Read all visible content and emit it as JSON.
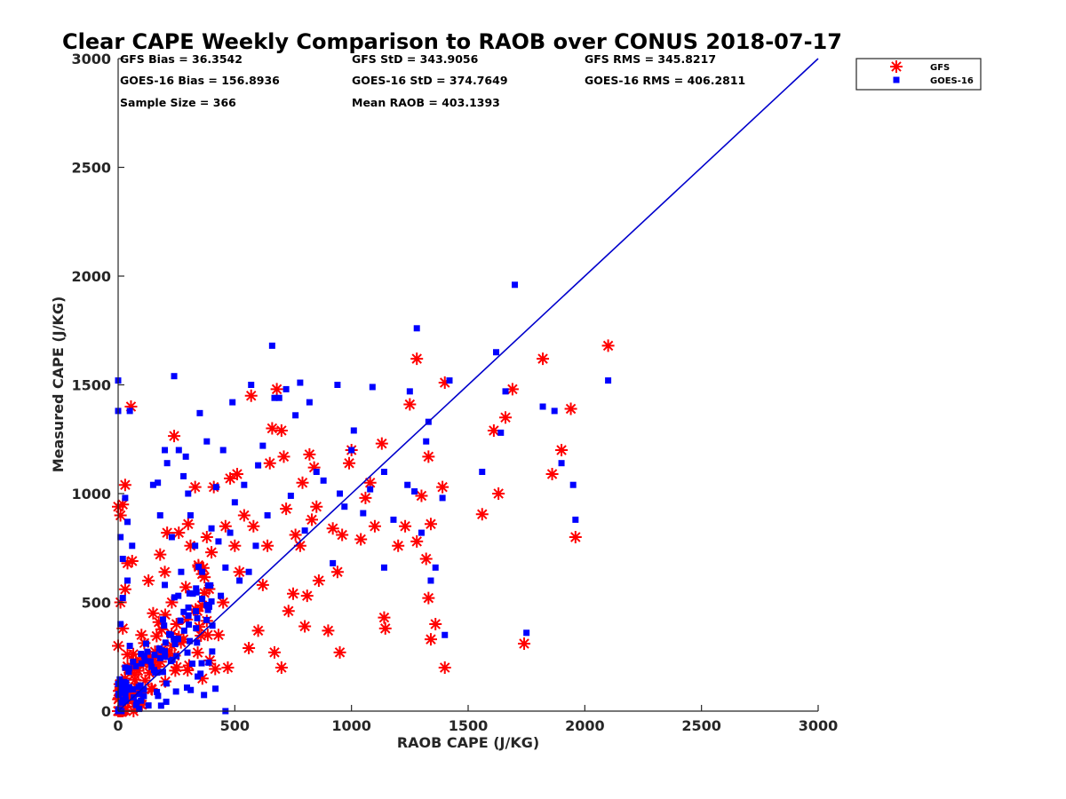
{
  "chart_data": {
    "type": "scatter",
    "title": "Clear CAPE Weekly Comparison to RAOB over CONUS 2018-07-17",
    "xlabel": "RAOB CAPE (J/KG)",
    "ylabel": "Measured CAPE (J/KG)",
    "xlim": [
      0,
      3000
    ],
    "ylim": [
      0,
      3000
    ],
    "xticks": [
      "0",
      "500",
      "1000",
      "1500",
      "2000",
      "2500",
      "3000"
    ],
    "yticks": [
      "0",
      "500",
      "1000",
      "1500",
      "2000",
      "2500",
      "3000"
    ],
    "grid": false,
    "legend_position": "top-right",
    "reference_line": {
      "x": [
        0,
        3000
      ],
      "y": [
        0,
        3000
      ],
      "color": "#0000cc"
    },
    "stats": {
      "gfs_bias": "GFS Bias = 36.3542",
      "gfs_std": "GFS StD = 343.9056",
      "gfs_rms": "GFS RMS = 345.8217",
      "goes_bias": "GOES-16 Bias = 156.8936",
      "goes_std": "GOES-16 StD = 374.7649",
      "goes_rms": "GOES-16 RMS = 406.2811",
      "sample_size": "Sample Size = 366",
      "mean_raob": "Mean RAOB = 403.1393"
    },
    "series": [
      {
        "name": "GFS",
        "marker": "asterisk",
        "color": "#ff0000",
        "points": [
          [
            0,
            940
          ],
          [
            10,
            900
          ],
          [
            20,
            950
          ],
          [
            30,
            1040
          ],
          [
            55,
            1400
          ],
          [
            40,
            680
          ],
          [
            60,
            690
          ],
          [
            30,
            560
          ],
          [
            10,
            500
          ],
          [
            20,
            380
          ],
          [
            0,
            300
          ],
          [
            40,
            260
          ],
          [
            70,
            200
          ],
          [
            30,
            150
          ],
          [
            10,
            100
          ],
          [
            50,
            60
          ],
          [
            80,
            20
          ],
          [
            20,
            0
          ],
          [
            100,
            350
          ],
          [
            120,
            240
          ],
          [
            130,
            600
          ],
          [
            150,
            450
          ],
          [
            170,
            250
          ],
          [
            180,
            720
          ],
          [
            200,
            640
          ],
          [
            210,
            820
          ],
          [
            230,
            500
          ],
          [
            240,
            1265
          ],
          [
            250,
            400
          ],
          [
            260,
            820
          ],
          [
            280,
            330
          ],
          [
            290,
            570
          ],
          [
            300,
            860
          ],
          [
            310,
            760
          ],
          [
            330,
            1030
          ],
          [
            340,
            460
          ],
          [
            360,
            630
          ],
          [
            380,
            800
          ],
          [
            400,
            730
          ],
          [
            410,
            1030
          ],
          [
            430,
            350
          ],
          [
            450,
            500
          ],
          [
            460,
            850
          ],
          [
            470,
            200
          ],
          [
            480,
            1070
          ],
          [
            500,
            760
          ],
          [
            510,
            1090
          ],
          [
            520,
            640
          ],
          [
            540,
            900
          ],
          [
            560,
            290
          ],
          [
            570,
            1450
          ],
          [
            580,
            850
          ],
          [
            600,
            370
          ],
          [
            620,
            580
          ],
          [
            640,
            760
          ],
          [
            650,
            1140
          ],
          [
            660,
            1300
          ],
          [
            670,
            270
          ],
          [
            680,
            1480
          ],
          [
            700,
            200
          ],
          [
            700,
            1290
          ],
          [
            710,
            1170
          ],
          [
            720,
            930
          ],
          [
            730,
            460
          ],
          [
            750,
            540
          ],
          [
            760,
            810
          ],
          [
            780,
            760
          ],
          [
            790,
            1050
          ],
          [
            800,
            390
          ],
          [
            810,
            530
          ],
          [
            820,
            1180
          ],
          [
            830,
            880
          ],
          [
            840,
            1120
          ],
          [
            850,
            940
          ],
          [
            860,
            600
          ],
          [
            900,
            370
          ],
          [
            920,
            840
          ],
          [
            940,
            640
          ],
          [
            950,
            270
          ],
          [
            960,
            810
          ],
          [
            990,
            1140
          ],
          [
            1000,
            1200
          ],
          [
            1040,
            790
          ],
          [
            1060,
            980
          ],
          [
            1080,
            1050
          ],
          [
            1100,
            850
          ],
          [
            1130,
            1230
          ],
          [
            1140,
            430
          ],
          [
            1145,
            380
          ],
          [
            1200,
            760
          ],
          [
            1230,
            850
          ],
          [
            1250,
            1410
          ],
          [
            1280,
            780
          ],
          [
            1280,
            1620
          ],
          [
            1300,
            990
          ],
          [
            1320,
            700
          ],
          [
            1330,
            1170
          ],
          [
            1330,
            520
          ],
          [
            1340,
            860
          ],
          [
            1340,
            330
          ],
          [
            1360,
            400
          ],
          [
            1390,
            1030
          ],
          [
            1400,
            200
          ],
          [
            1400,
            1510
          ],
          [
            1560,
            905
          ],
          [
            1610,
            1290
          ],
          [
            1630,
            1000
          ],
          [
            1660,
            1350
          ],
          [
            1690,
            1480
          ],
          [
            1740,
            310
          ],
          [
            1820,
            1620
          ],
          [
            1860,
            1090
          ],
          [
            1900,
            1200
          ],
          [
            1940,
            1390
          ],
          [
            1960,
            800
          ],
          [
            2100,
            1680
          ]
        ]
      },
      {
        "name": "GOES-16",
        "marker": "square",
        "color": "#0000ff",
        "points": [
          [
            0,
            1520
          ],
          [
            0,
            1380
          ],
          [
            50,
            1380
          ],
          [
            10,
            800
          ],
          [
            20,
            700
          ],
          [
            30,
            980
          ],
          [
            40,
            870
          ],
          [
            60,
            760
          ],
          [
            40,
            600
          ],
          [
            20,
            520
          ],
          [
            10,
            400
          ],
          [
            50,
            300
          ],
          [
            30,
            200
          ],
          [
            60,
            100
          ],
          [
            20,
            50
          ],
          [
            90,
            10
          ],
          [
            120,
            310
          ],
          [
            150,
            1040
          ],
          [
            170,
            1050
          ],
          [
            180,
            900
          ],
          [
            200,
            580
          ],
          [
            200,
            1200
          ],
          [
            210,
            1140
          ],
          [
            230,
            800
          ],
          [
            240,
            1540
          ],
          [
            260,
            1200
          ],
          [
            270,
            640
          ],
          [
            280,
            1080
          ],
          [
            290,
            1170
          ],
          [
            300,
            1000
          ],
          [
            310,
            900
          ],
          [
            320,
            540
          ],
          [
            330,
            760
          ],
          [
            350,
            1370
          ],
          [
            360,
            640
          ],
          [
            380,
            1240
          ],
          [
            400,
            840
          ],
          [
            420,
            1030
          ],
          [
            430,
            780
          ],
          [
            440,
            530
          ],
          [
            450,
            1200
          ],
          [
            460,
            660
          ],
          [
            480,
            820
          ],
          [
            490,
            1420
          ],
          [
            500,
            960
          ],
          [
            520,
            600
          ],
          [
            540,
            1040
          ],
          [
            560,
            640
          ],
          [
            570,
            1500
          ],
          [
            590,
            760
          ],
          [
            600,
            1130
          ],
          [
            620,
            1220
          ],
          [
            640,
            900
          ],
          [
            660,
            1680
          ],
          [
            670,
            1440
          ],
          [
            690,
            1440
          ],
          [
            720,
            1480
          ],
          [
            740,
            990
          ],
          [
            760,
            1360
          ],
          [
            780,
            1510
          ],
          [
            800,
            830
          ],
          [
            820,
            1420
          ],
          [
            850,
            1100
          ],
          [
            880,
            1060
          ],
          [
            920,
            680
          ],
          [
            940,
            1500
          ],
          [
            950,
            1000
          ],
          [
            970,
            940
          ],
          [
            1000,
            1200
          ],
          [
            1010,
            1290
          ],
          [
            1050,
            910
          ],
          [
            1080,
            1020
          ],
          [
            1090,
            1490
          ],
          [
            1140,
            1100
          ],
          [
            1140,
            660
          ],
          [
            1180,
            880
          ],
          [
            1240,
            1040
          ],
          [
            1250,
            1470
          ],
          [
            1270,
            1010
          ],
          [
            1280,
            1760
          ],
          [
            1300,
            820
          ],
          [
            1320,
            1240
          ],
          [
            1330,
            1330
          ],
          [
            1340,
            600
          ],
          [
            1360,
            660
          ],
          [
            1390,
            980
          ],
          [
            1400,
            350
          ],
          [
            1420,
            1520
          ],
          [
            1560,
            1100
          ],
          [
            1620,
            1650
          ],
          [
            1640,
            1280
          ],
          [
            1660,
            1470
          ],
          [
            1700,
            1960
          ],
          [
            1750,
            360
          ],
          [
            1820,
            1400
          ],
          [
            1870,
            1380
          ],
          [
            1900,
            1140
          ],
          [
            1950,
            1040
          ],
          [
            1960,
            880
          ],
          [
            2100,
            1520
          ],
          [
            460,
            0
          ]
        ]
      }
    ],
    "cluster_seed": 7
  }
}
